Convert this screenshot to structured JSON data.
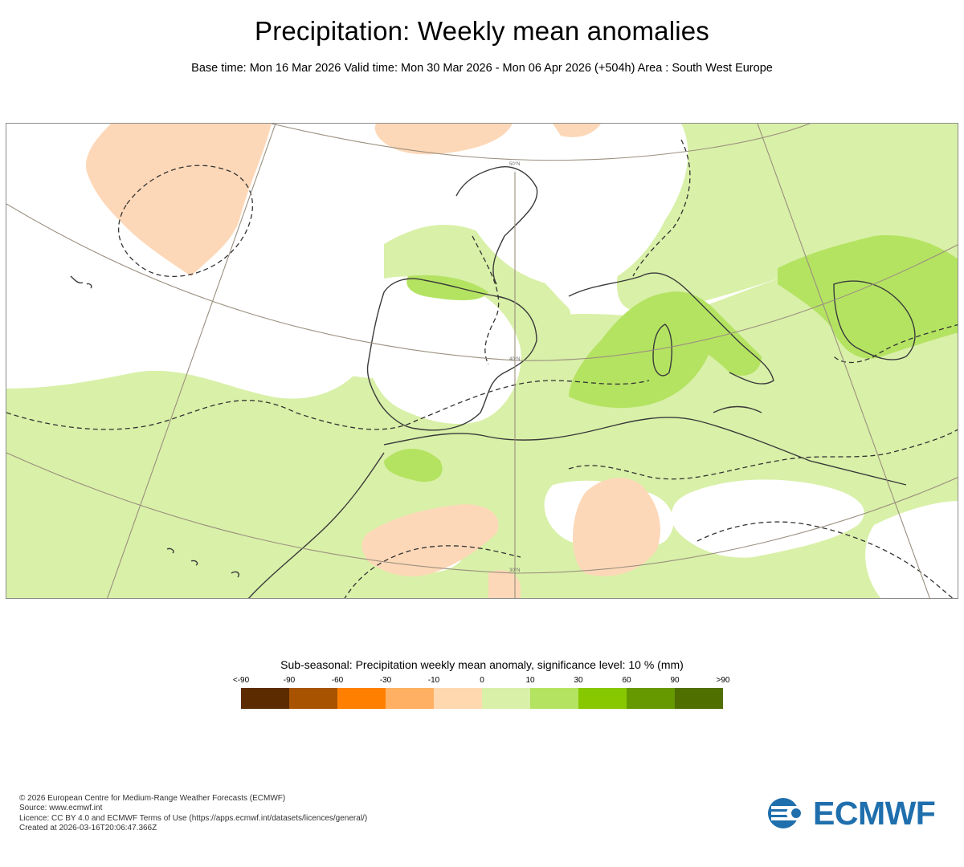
{
  "header": {
    "title": "Precipitation: Weekly mean anomalies",
    "subtitle": "Base time: Mon 16 Mar 2026 Valid time: Mon 30 Mar 2026 - Mon 06 Apr 2026 (+504h) Area : South West Europe"
  },
  "map": {
    "area": "South West Europe",
    "graticule_labels": {
      "lat_50": "50°N",
      "lat_40": "40°N",
      "lat_30": "30°N"
    },
    "colors": {
      "land_border": "#3a3a3a",
      "graticule": "#9a8f7f",
      "green_light": "#d9f0a8",
      "green_mid": "#b4e362",
      "orange_light": "#fdd8b8"
    }
  },
  "legend": {
    "title": "Sub-seasonal: Precipitation weekly mean anomaly, significance level: 10 % (mm)",
    "labels": [
      "<-90",
      "-90",
      "-60",
      "-30",
      "-10",
      "0",
      "10",
      "30",
      "60",
      "90",
      ">90"
    ],
    "colors": [
      "#5c2c00",
      "#a85300",
      "#ff7f00",
      "#ffb062",
      "#ffd8b0",
      "#d9f0a8",
      "#b4e362",
      "#87c800",
      "#669900",
      "#4f6f00"
    ]
  },
  "footer": {
    "line1": "© 2026 European Centre for Medium-Range Weather Forecasts (ECMWF)",
    "line2": "Source: www.ecmwf.int",
    "line3": "Licence: CC BY 4.0 and ECMWF Terms of Use (https://apps.ecmwf.int/datasets/licences/general/)",
    "line4": "Created at 2026-03-16T20:06:47.366Z"
  },
  "logo": {
    "text": "ECMWF",
    "color": "#1f6fad"
  }
}
